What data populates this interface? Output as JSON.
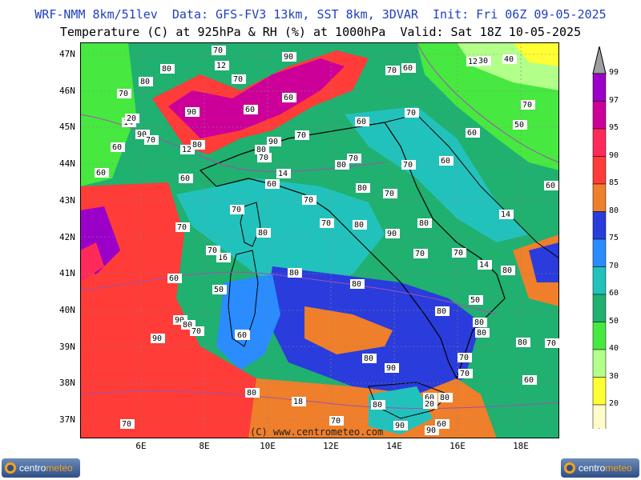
{
  "header": {
    "line1": "WRF-NMM 8km/51lev  Data: GFS-FV3 13km, SST 8km, 3DVAR  Init: Fri 06Z 09-05-2025",
    "line2": "Temperature (C) at 925hPa & RH (%) at 1000hPa  Valid: Sat 18Z 10-05-2025"
  },
  "lat_ticks": [
    "47N",
    "46N",
    "45N",
    "44N",
    "43N",
    "42N",
    "41N",
    "40N",
    "39N",
    "38N",
    "37N"
  ],
  "lon_ticks": [
    "6E",
    "8E",
    "10E",
    "12E",
    "14E",
    "16E",
    "18E"
  ],
  "colorbar": {
    "labels": [
      "99",
      "97",
      "95",
      "90",
      "85",
      "80",
      "75",
      "70",
      "60",
      "50",
      "40",
      "30",
      "20"
    ],
    "colors": [
      "#9a00c8",
      "#cc0099",
      "#ff2a5a",
      "#ff3c38",
      "#ef7f2a",
      "#2a3cdc",
      "#2a8cff",
      "#22c2bc",
      "#20b070",
      "#47e840",
      "#b2ff8a",
      "#ffff33",
      "#fffccc"
    ],
    "top_cap_color": "#9e9e9e"
  },
  "isotherm_labels": [
    {
      "text": "70"
    },
    {
      "text": "12"
    },
    {
      "text": "70"
    },
    {
      "text": "90"
    },
    {
      "text": "80"
    },
    {
      "text": "70"
    },
    {
      "text": "60"
    },
    {
      "text": "12"
    },
    {
      "text": "30"
    },
    {
      "text": "40"
    },
    {
      "text": "80"
    },
    {
      "text": "70"
    },
    {
      "text": "90"
    },
    {
      "text": "60"
    },
    {
      "text": "60"
    },
    {
      "text": "70"
    },
    {
      "text": "14"
    },
    {
      "text": "20"
    },
    {
      "text": "90"
    },
    {
      "text": "70"
    },
    {
      "text": "12"
    },
    {
      "text": "80"
    },
    {
      "text": "90"
    },
    {
      "text": "70"
    },
    {
      "text": "60"
    },
    {
      "text": "70"
    },
    {
      "text": "60"
    },
    {
      "text": "60"
    },
    {
      "text": "50"
    },
    {
      "text": "60"
    },
    {
      "text": "80"
    },
    {
      "text": "70"
    },
    {
      "text": "70"
    },
    {
      "text": "80"
    },
    {
      "text": "70"
    },
    {
      "text": "60"
    },
    {
      "text": "60"
    },
    {
      "text": "14"
    },
    {
      "text": "60"
    },
    {
      "text": "80"
    },
    {
      "text": "70"
    },
    {
      "text": "70"
    },
    {
      "text": "70"
    },
    {
      "text": "70"
    },
    {
      "text": "80"
    },
    {
      "text": "90"
    },
    {
      "text": "80"
    },
    {
      "text": "70"
    },
    {
      "text": "80"
    },
    {
      "text": "14"
    },
    {
      "text": "60"
    },
    {
      "text": "16"
    },
    {
      "text": "60"
    },
    {
      "text": "70"
    },
    {
      "text": "80"
    },
    {
      "text": "70"
    },
    {
      "text": "14"
    },
    {
      "text": "80"
    },
    {
      "text": "70"
    },
    {
      "text": "50"
    },
    {
      "text": "80"
    },
    {
      "text": "80"
    },
    {
      "text": "50"
    },
    {
      "text": "60"
    },
    {
      "text": "90"
    },
    {
      "text": "80"
    },
    {
      "text": "70"
    },
    {
      "text": "60"
    },
    {
      "text": "90"
    },
    {
      "text": "80"
    },
    {
      "text": "60"
    },
    {
      "text": "70"
    },
    {
      "text": "80"
    },
    {
      "text": "90"
    },
    {
      "text": "80"
    },
    {
      "text": "70"
    },
    {
      "text": "60"
    },
    {
      "text": "20"
    },
    {
      "text": "80"
    },
    {
      "text": "18"
    },
    {
      "text": "80"
    },
    {
      "text": "90"
    },
    {
      "text": "70"
    },
    {
      "text": "70"
    },
    {
      "text": "80"
    },
    {
      "text": "70"
    },
    {
      "text": "80"
    },
    {
      "text": "90"
    },
    {
      "text": "60"
    }
  ],
  "copyright": "(C) www.centrometeo.com",
  "logo_left": {
    "a": "centro",
    "b": "meteo"
  },
  "logo_right": {
    "a": "centro",
    "b": "meteo"
  }
}
